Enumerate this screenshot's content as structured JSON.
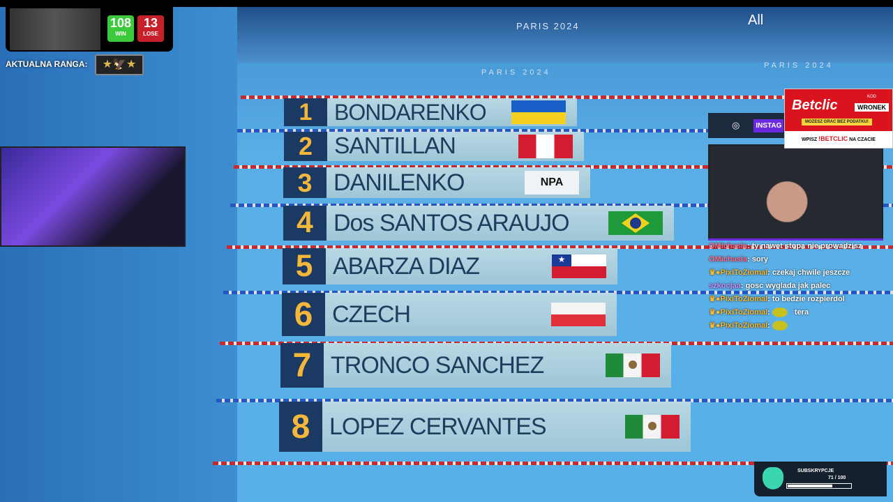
{
  "scoreboard": {
    "win": "108",
    "win_label": "WIN",
    "lose": "13",
    "lose_label": "LOSE",
    "rank_label": "AKTUALNA RANGA:",
    "colors": {
      "win": "#3cc93c",
      "lose": "#c8202a"
    }
  },
  "venue": {
    "banner1": "PARIS 2024",
    "banner2": "PARIS 2024",
    "banner3": "PARIS 2024",
    "sponsor": "All"
  },
  "results": [
    {
      "place": "1",
      "name": "BONDARENKO",
      "flag": "ukraine"
    },
    {
      "place": "2",
      "name": "SANTILLAN",
      "flag": "peru"
    },
    {
      "place": "3",
      "name": "DANILENKO",
      "flag": "NPA"
    },
    {
      "place": "4",
      "name": "Dos SANTOS ARAUJO",
      "flag": "brazil"
    },
    {
      "place": "5",
      "name": "ABARZA DIAZ",
      "flag": "chile"
    },
    {
      "place": "6",
      "name": "CZECH",
      "flag": "poland"
    },
    {
      "place": "7",
      "name": "TRONCO SANCHEZ",
      "flag": "mexico"
    },
    {
      "place": "8",
      "name": "LOPEZ CERVANTES",
      "flag": "mexico"
    }
  ],
  "ad": {
    "brand": "Betclic",
    "code_label": "KOD",
    "code": "WRONEK",
    "tagline": "MOZESZ GRAC BEZ PODATKU!",
    "cta_pre": "WPISZ",
    "cta_cmd": "!BETCLIC",
    "cta_post": "NA CZACIE",
    "color": "#d9141e"
  },
  "social": {
    "instagram": "INSTAG"
  },
  "chat": [
    {
      "user": "OMichasia",
      "msg": "ty nawet stopa nie prowadzisz",
      "cls": "u1",
      "badges": false
    },
    {
      "user": "OMichasia",
      "msg": "sory",
      "cls": "u1",
      "badges": false
    },
    {
      "user": "PixiToZiomal",
      "msg": "czekaj chwile jeszcze",
      "cls": "u2",
      "badges": true
    },
    {
      "user": "szkocjaa",
      "msg": "gosc wyglada jak palec",
      "cls": "u3",
      "badges": false
    },
    {
      "user": "PixiToZiomal",
      "msg": "to bedzie rozpierdol",
      "cls": "u2",
      "badges": true
    },
    {
      "user": "PixiToZiomal",
      "msg": "tera",
      "cls": "u2",
      "badges": true,
      "emote": true
    },
    {
      "user": "PixiToZiomal",
      "msg": "",
      "cls": "u2",
      "badges": true,
      "emote": true
    }
  ],
  "subs": {
    "label": "SUBSKRYPCJE",
    "current": "71",
    "goal": "/ 100",
    "progress": 0.71
  }
}
